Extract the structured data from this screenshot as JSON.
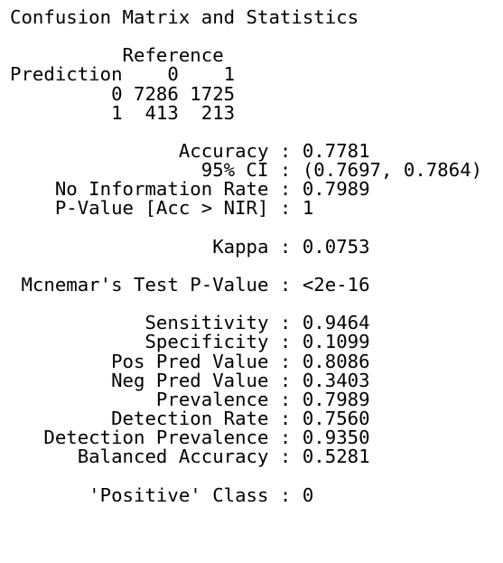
{
  "console": {
    "lines": [
      "Confusion Matrix and Statistics",
      "",
      "          Reference",
      "Prediction    0    1",
      "         0 7286 1725",
      "         1  413  213",
      "",
      "               Accuracy : 0.7781",
      "                 95% CI : (0.7697, 0.7864)",
      "    No Information Rate : 0.7989",
      "    P-Value [Acc > NIR] : 1",
      "",
      "                  Kappa : 0.0753",
      "",
      " Mcnemar's Test P-Value : <2e-16",
      "",
      "            Sensitivity : 0.9464",
      "            Specificity : 0.1099",
      "         Pos Pred Value : 0.8086",
      "         Neg Pred Value : 0.3403",
      "             Prevalence : 0.7989",
      "         Detection Rate : 0.7560",
      "   Detection Prevalence : 0.9350",
      "      Balanced Accuracy : 0.5281",
      "",
      "       'Positive' Class : 0"
    ]
  }
}
